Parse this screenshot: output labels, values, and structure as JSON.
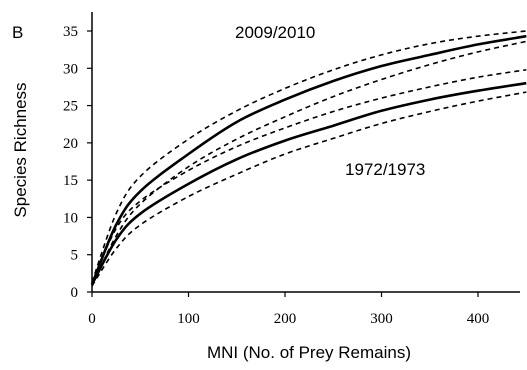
{
  "chart_data": {
    "type": "line",
    "panel_label": "B",
    "xlabel": "MNI (No. of Prey Remains)",
    "ylabel": "Species Richness",
    "xlim": [
      0,
      450
    ],
    "ylim": [
      0,
      35
    ],
    "xticks": [
      0,
      100,
      200,
      300,
      400
    ],
    "yticks": [
      0,
      5,
      10,
      15,
      20,
      25,
      30,
      35
    ],
    "grid": false,
    "annotations": [
      "2009/2010",
      "1972/1973"
    ],
    "x": [
      0,
      25,
      50,
      100,
      150,
      200,
      250,
      300,
      350,
      400,
      450
    ],
    "series": [
      {
        "name": "2009/2010",
        "style": "solid",
        "values": [
          1,
          9,
          13.5,
          18.5,
          22.8,
          25.8,
          28.3,
          30.3,
          31.8,
          33.2,
          34.3
        ]
      },
      {
        "style": "dashed",
        "values": [
          1.3,
          10.5,
          15.5,
          20.5,
          24.3,
          27.3,
          29.8,
          31.8,
          33.3,
          34.3,
          35.0
        ]
      },
      {
        "style": "dashed",
        "values": [
          0.8,
          7.5,
          11.8,
          16.8,
          20.5,
          23.5,
          26.2,
          28.5,
          30.5,
          32.2,
          33.6
        ]
      },
      {
        "name": "1972/1973",
        "style": "solid",
        "values": [
          1,
          7,
          10.5,
          14.5,
          17.8,
          20.3,
          22.3,
          24.3,
          25.8,
          27.0,
          28.0
        ]
      },
      {
        "style": "dashed",
        "values": [
          1.3,
          8.5,
          12.2,
          16.3,
          19.5,
          22.0,
          24.2,
          26.0,
          27.5,
          28.8,
          29.8
        ]
      },
      {
        "style": "dashed",
        "values": [
          0.8,
          5.8,
          9.0,
          12.8,
          15.8,
          18.5,
          20.6,
          22.6,
          24.2,
          25.6,
          26.8
        ]
      }
    ]
  }
}
